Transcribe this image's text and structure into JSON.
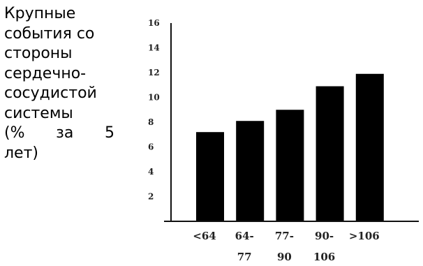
{
  "chart_data": {
    "type": "bar",
    "ylabel_lines": [
      "Крупные",
      "события со",
      "стороны",
      "сердечно-",
      "сосудистой",
      "системы",
      "(% за 5",
      "лет)"
    ],
    "categories": [
      {
        "line1": "<64",
        "line2": ""
      },
      {
        "line1": "64-",
        "line2": "77"
      },
      {
        "line1": "77-",
        "line2": "90"
      },
      {
        "line1": "90-",
        "line2": "106"
      },
      {
        "line1": ">106",
        "line2": ""
      }
    ],
    "values": [
      7.2,
      8.1,
      9.0,
      10.9,
      11.9
    ],
    "ylim": [
      0,
      16
    ],
    "yticks": [
      2,
      4,
      6,
      8,
      10,
      12,
      14,
      16
    ],
    "grid": false,
    "colors": {
      "bar": "#000000",
      "axis": "#111111"
    }
  }
}
